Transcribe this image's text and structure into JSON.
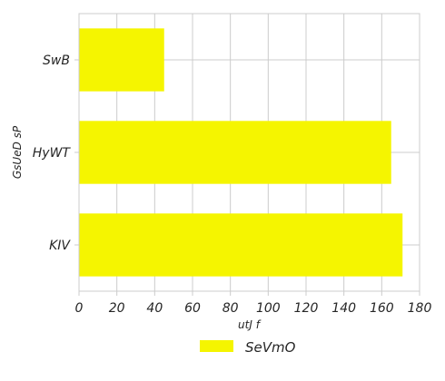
{
  "chart_data": {
    "type": "bar",
    "orientation": "horizontal",
    "categories": [
      "SwB",
      "HyWT",
      "KIV"
    ],
    "series": [
      {
        "name": "SeVmO",
        "values": [
          45,
          165,
          171
        ],
        "color": "#f5f500"
      }
    ],
    "xlabel": "utJ  f",
    "ylabel": "GsUeD sP",
    "xlim": [
      0,
      180
    ],
    "xticks": [
      0,
      20,
      40,
      60,
      80,
      100,
      120,
      140,
      160,
      180
    ],
    "grid": true,
    "legend_position": "bottom-center"
  }
}
